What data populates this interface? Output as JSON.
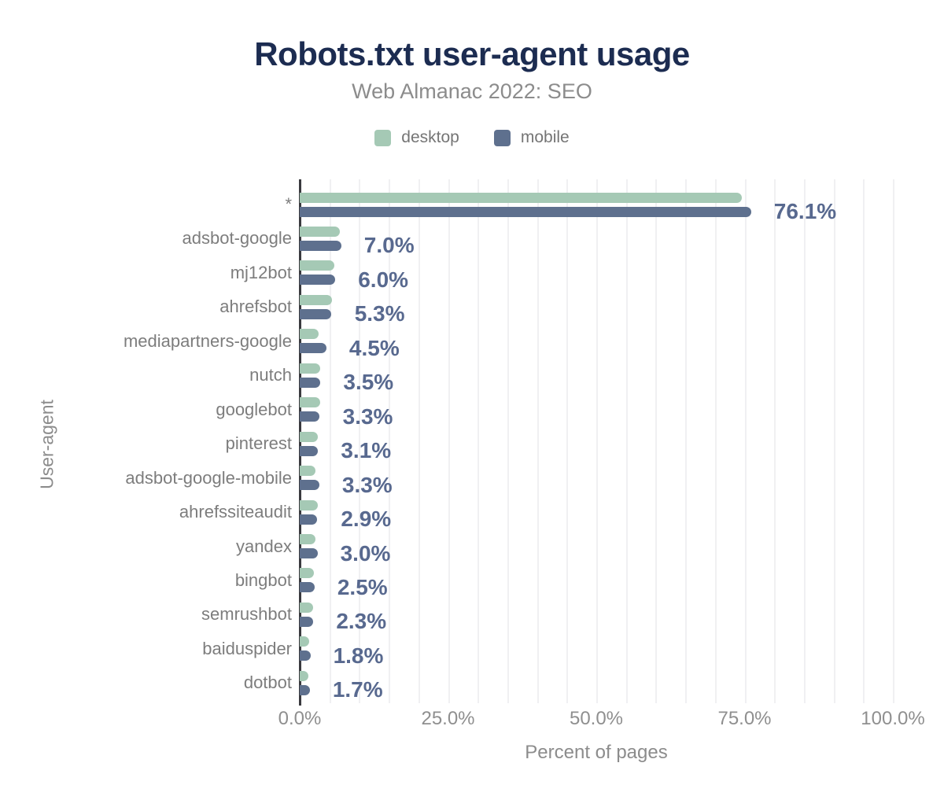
{
  "chart_data": {
    "type": "bar",
    "orientation": "horizontal",
    "title": "Robots.txt user-agent usage",
    "subtitle": "Web Almanac 2022: SEO",
    "xlabel": "Percent of pages",
    "ylabel": "User-agent",
    "xlim": [
      0,
      100
    ],
    "x_ticks": [
      {
        "value": 0,
        "label": "0.0%"
      },
      {
        "value": 25,
        "label": "25.0%"
      },
      {
        "value": 50,
        "label": "50.0%"
      },
      {
        "value": 75,
        "label": "75.0%"
      },
      {
        "value": 100,
        "label": "100.0%"
      }
    ],
    "grid": "vertical minor gridlines every 5%",
    "legend_position": "top-center",
    "categories": [
      "*",
      "adsbot-google",
      "mj12bot",
      "ahrefsbot",
      "mediapartners-google",
      "nutch",
      "googlebot",
      "pinterest",
      "adsbot-google-mobile",
      "ahrefssiteaudit",
      "yandex",
      "bingbot",
      "semrushbot",
      "baiduspider",
      "dotbot"
    ],
    "series": [
      {
        "name": "desktop",
        "color": "#a5c9b5",
        "values": [
          74.5,
          6.7,
          5.9,
          5.4,
          3.2,
          3.4,
          3.4,
          3.1,
          2.7,
          3.1,
          2.7,
          2.4,
          2.3,
          1.6,
          1.5
        ]
      },
      {
        "name": "mobile",
        "color": "#5e708e",
        "values": [
          76.1,
          7.0,
          6.0,
          5.3,
          4.5,
          3.5,
          3.3,
          3.1,
          3.3,
          2.9,
          3.0,
          2.5,
          2.3,
          1.8,
          1.7
        ]
      }
    ],
    "value_labels": [
      "76.1%",
      "7.0%",
      "6.0%",
      "5.3%",
      "4.5%",
      "3.5%",
      "3.3%",
      "3.1%",
      "3.3%",
      "2.9%",
      "3.0%",
      "2.5%",
      "2.3%",
      "1.8%",
      "1.7%"
    ],
    "value_labels_series": "mobile"
  },
  "colors": {
    "title": "#1c2c51",
    "subtitle": "#8c8c8c",
    "legend_text": "#757575",
    "desktop": "#a5c9b5",
    "mobile": "#5e708e",
    "value_label": "#58698f",
    "category_label": "#7d7d7d",
    "tick_label": "#8f8f8f",
    "axis_line": "#3a3a3e",
    "gridline": "#f0f0f2"
  }
}
